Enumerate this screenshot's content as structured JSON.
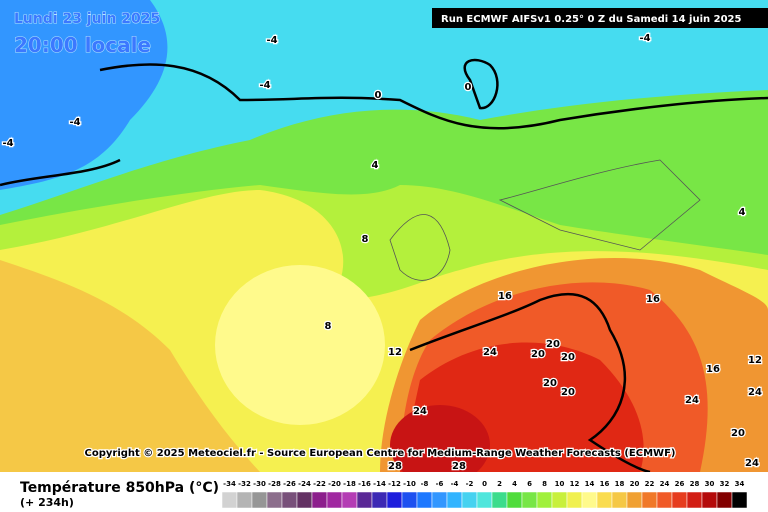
{
  "header": {
    "date": "Lundi 23 juin 2025",
    "time": "20:00 locale",
    "run": "Run ECMWF AIFSv1 0.25° 0 Z du Samedi 14 juin 2025"
  },
  "map": {
    "contour_labels": [
      -4,
      -4,
      -4,
      -4,
      -4,
      0,
      0,
      4,
      4,
      8,
      8,
      12,
      12,
      16,
      16,
      16,
      20,
      20,
      20,
      20,
      20,
      24,
      24,
      24,
      24,
      24,
      20,
      28,
      28
    ],
    "copyright": "Copyright © 2025 Meteociel.fr - Source European Centre for Medium-Range Weather Forecasts (ECMWF)"
  },
  "legend": {
    "title": "Température 850hPa (°C)",
    "lead_time": "(+ 234h)",
    "ticks": [
      -34,
      -32,
      -30,
      -28,
      -26,
      -24,
      -22,
      -20,
      -18,
      -16,
      -14,
      -12,
      -10,
      -8,
      -6,
      -4,
      -2,
      0,
      2,
      4,
      6,
      8,
      10,
      12,
      14,
      16,
      18,
      20,
      22,
      24,
      26,
      28,
      30,
      32,
      34
    ],
    "colors": [
      "#d2d2d2",
      "#b4b4b4",
      "#969696",
      "#8c6e8c",
      "#78507a",
      "#643264",
      "#8c1e8c",
      "#a028a0",
      "#b43cb4",
      "#5a2896",
      "#3c28b4",
      "#1e1edc",
      "#1e50f0",
      "#1e78ff",
      "#3296ff",
      "#32b4ff",
      "#46d2f0",
      "#50e6dc",
      "#3cdc8c",
      "#50dc3c",
      "#78e646",
      "#a0f03c",
      "#c8f03c",
      "#f0f050",
      "#fffa8c",
      "#fadc50",
      "#f5c846",
      "#f0a032",
      "#f07828",
      "#f05a28",
      "#e63c1e",
      "#d21e14",
      "#b40a0a",
      "#820000",
      "#000000"
    ]
  }
}
